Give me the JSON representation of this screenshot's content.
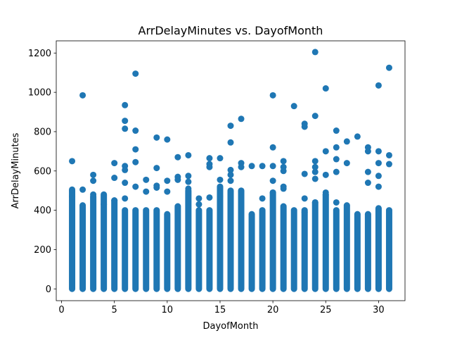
{
  "chart_data": {
    "type": "scatter",
    "title": "ArrDelayMinutes vs. DayofMonth",
    "xlabel": "DayofMonth",
    "ylabel": "ArrDelayMinutes",
    "xlim": [
      -0.5,
      32.5
    ],
    "ylim": [
      -60,
      1262
    ],
    "xticks": [
      0,
      5,
      10,
      15,
      20,
      25,
      30
    ],
    "yticks": [
      0,
      200,
      400,
      600,
      800,
      1000,
      1200
    ],
    "grid": false,
    "legend": "none",
    "marker_color": "#1f77b4",
    "dense_bands": [
      {
        "x": 1,
        "max": 500
      },
      {
        "x": 2,
        "max": 420
      },
      {
        "x": 3,
        "max": 470
      },
      {
        "x": 4,
        "max": 480
      },
      {
        "x": 5,
        "max": 450
      },
      {
        "x": 6,
        "max": 400
      },
      {
        "x": 7,
        "max": 400
      },
      {
        "x": 8,
        "max": 400
      },
      {
        "x": 9,
        "max": 400
      },
      {
        "x": 10,
        "max": 380
      },
      {
        "x": 11,
        "max": 420
      },
      {
        "x": 12,
        "max": 500
      },
      {
        "x": 13,
        "max": 400
      },
      {
        "x": 14,
        "max": 400
      },
      {
        "x": 15,
        "max": 520
      },
      {
        "x": 16,
        "max": 500
      },
      {
        "x": 17,
        "max": 500
      },
      {
        "x": 18,
        "max": 380
      },
      {
        "x": 19,
        "max": 400
      },
      {
        "x": 20,
        "max": 490
      },
      {
        "x": 21,
        "max": 420
      },
      {
        "x": 22,
        "max": 400
      },
      {
        "x": 23,
        "max": 400
      },
      {
        "x": 24,
        "max": 440
      },
      {
        "x": 25,
        "max": 480
      },
      {
        "x": 26,
        "max": 400
      },
      {
        "x": 27,
        "max": 420
      },
      {
        "x": 28,
        "max": 380
      },
      {
        "x": 29,
        "max": 380
      },
      {
        "x": 30,
        "max": 410
      },
      {
        "x": 31,
        "max": 400
      }
    ],
    "points": [
      {
        "x": 1,
        "y": 650
      },
      {
        "x": 1,
        "y": 505
      },
      {
        "x": 1,
        "y": 470
      },
      {
        "x": 2,
        "y": 985
      },
      {
        "x": 2,
        "y": 505
      },
      {
        "x": 2,
        "y": 425
      },
      {
        "x": 3,
        "y": 580
      },
      {
        "x": 3,
        "y": 550
      },
      {
        "x": 3,
        "y": 480
      },
      {
        "x": 4,
        "y": 430
      },
      {
        "x": 5,
        "y": 640
      },
      {
        "x": 5,
        "y": 565
      },
      {
        "x": 5,
        "y": 450
      },
      {
        "x": 6,
        "y": 935
      },
      {
        "x": 6,
        "y": 855
      },
      {
        "x": 6,
        "y": 815
      },
      {
        "x": 6,
        "y": 625
      },
      {
        "x": 6,
        "y": 605
      },
      {
        "x": 6,
        "y": 540
      },
      {
        "x": 6,
        "y": 460
      },
      {
        "x": 7,
        "y": 1095
      },
      {
        "x": 7,
        "y": 805
      },
      {
        "x": 7,
        "y": 710
      },
      {
        "x": 7,
        "y": 645
      },
      {
        "x": 7,
        "y": 520
      },
      {
        "x": 8,
        "y": 555
      },
      {
        "x": 8,
        "y": 495
      },
      {
        "x": 9,
        "y": 770
      },
      {
        "x": 9,
        "y": 615
      },
      {
        "x": 9,
        "y": 525
      },
      {
        "x": 9,
        "y": 515
      },
      {
        "x": 10,
        "y": 760
      },
      {
        "x": 10,
        "y": 550
      },
      {
        "x": 10,
        "y": 495
      },
      {
        "x": 11,
        "y": 670
      },
      {
        "x": 11,
        "y": 570
      },
      {
        "x": 11,
        "y": 555
      },
      {
        "x": 12,
        "y": 680
      },
      {
        "x": 12,
        "y": 575
      },
      {
        "x": 12,
        "y": 545
      },
      {
        "x": 12,
        "y": 510
      },
      {
        "x": 13,
        "y": 460
      },
      {
        "x": 13,
        "y": 430
      },
      {
        "x": 14,
        "y": 665
      },
      {
        "x": 14,
        "y": 635
      },
      {
        "x": 14,
        "y": 620
      },
      {
        "x": 14,
        "y": 465
      },
      {
        "x": 15,
        "y": 665
      },
      {
        "x": 15,
        "y": 555
      },
      {
        "x": 15,
        "y": 515
      },
      {
        "x": 15,
        "y": 470
      },
      {
        "x": 16,
        "y": 830
      },
      {
        "x": 16,
        "y": 745
      },
      {
        "x": 16,
        "y": 605
      },
      {
        "x": 16,
        "y": 580
      },
      {
        "x": 16,
        "y": 550
      },
      {
        "x": 17,
        "y": 865
      },
      {
        "x": 17,
        "y": 640
      },
      {
        "x": 17,
        "y": 620
      },
      {
        "x": 17,
        "y": 495
      },
      {
        "x": 18,
        "y": 625
      },
      {
        "x": 19,
        "y": 625
      },
      {
        "x": 19,
        "y": 460
      },
      {
        "x": 20,
        "y": 985
      },
      {
        "x": 20,
        "y": 720
      },
      {
        "x": 20,
        "y": 625
      },
      {
        "x": 20,
        "y": 550
      },
      {
        "x": 20,
        "y": 490
      },
      {
        "x": 21,
        "y": 650
      },
      {
        "x": 21,
        "y": 620
      },
      {
        "x": 21,
        "y": 600
      },
      {
        "x": 21,
        "y": 520
      },
      {
        "x": 21,
        "y": 510
      },
      {
        "x": 22,
        "y": 930
      },
      {
        "x": 23,
        "y": 840
      },
      {
        "x": 23,
        "y": 825
      },
      {
        "x": 23,
        "y": 585
      },
      {
        "x": 23,
        "y": 460
      },
      {
        "x": 23,
        "y": 390
      },
      {
        "x": 24,
        "y": 1205
      },
      {
        "x": 24,
        "y": 880
      },
      {
        "x": 24,
        "y": 650
      },
      {
        "x": 24,
        "y": 620
      },
      {
        "x": 24,
        "y": 595
      },
      {
        "x": 24,
        "y": 560
      },
      {
        "x": 24,
        "y": 440
      },
      {
        "x": 25,
        "y": 1020
      },
      {
        "x": 25,
        "y": 700
      },
      {
        "x": 25,
        "y": 580
      },
      {
        "x": 25,
        "y": 490
      },
      {
        "x": 25,
        "y": 480
      },
      {
        "x": 26,
        "y": 805
      },
      {
        "x": 26,
        "y": 720
      },
      {
        "x": 26,
        "y": 660
      },
      {
        "x": 26,
        "y": 595
      },
      {
        "x": 26,
        "y": 440
      },
      {
        "x": 27,
        "y": 750
      },
      {
        "x": 27,
        "y": 640
      },
      {
        "x": 27,
        "y": 425
      },
      {
        "x": 28,
        "y": 775
      },
      {
        "x": 29,
        "y": 720
      },
      {
        "x": 29,
        "y": 700
      },
      {
        "x": 29,
        "y": 595
      },
      {
        "x": 29,
        "y": 540
      },
      {
        "x": 30,
        "y": 1035
      },
      {
        "x": 30,
        "y": 700
      },
      {
        "x": 30,
        "y": 640
      },
      {
        "x": 30,
        "y": 575
      },
      {
        "x": 30,
        "y": 520
      },
      {
        "x": 31,
        "y": 1125
      },
      {
        "x": 31,
        "y": 680
      },
      {
        "x": 31,
        "y": 635
      }
    ]
  }
}
